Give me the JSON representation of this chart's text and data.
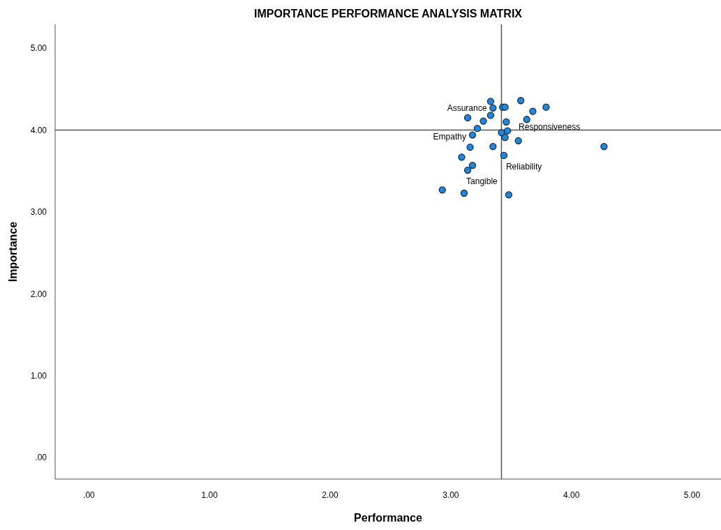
{
  "chart_data": {
    "type": "scatter",
    "title": "IMPORTANCE PERFORMANCE ANALYSIS MATRIX",
    "xlabel": "Performance",
    "ylabel": "Importance",
    "x": [
      3.33,
      3.35,
      3.43,
      3.45,
      3.58,
      3.79,
      3.68,
      3.63,
      3.14,
      3.33,
      3.27,
      3.46,
      3.22,
      3.18,
      3.42,
      3.47,
      3.45,
      3.56,
      4.27,
      3.16,
      3.35,
      3.44,
      3.09,
      3.18,
      3.14,
      2.93,
      3.11,
      3.48
    ],
    "values": [
      4.35,
      4.27,
      4.28,
      4.28,
      4.36,
      4.28,
      4.23,
      4.13,
      4.15,
      4.18,
      4.11,
      4.1,
      4.02,
      3.94,
      3.97,
      3.99,
      3.91,
      3.87,
      3.8,
      3.79,
      3.8,
      3.69,
      3.67,
      3.57,
      3.51,
      3.27,
      3.23,
      3.21
    ],
    "color": "#1e88e0",
    "marker": "circle",
    "grid": false,
    "xlim": [
      -0.28,
      5.24
    ],
    "ylim": [
      -0.26,
      5.29
    ],
    "xticks": [
      {
        "value": 0,
        "label": ".00"
      },
      {
        "value": 1,
        "label": "1.00"
      },
      {
        "value": 2,
        "label": "2.00"
      },
      {
        "value": 3,
        "label": "3.00"
      },
      {
        "value": 4,
        "label": "4.00"
      },
      {
        "value": 5,
        "label": "5.00"
      }
    ],
    "yticks": [
      {
        "value": 0,
        "label": ".00"
      },
      {
        "value": 1,
        "label": "1.00"
      },
      {
        "value": 2,
        "label": "2.00"
      },
      {
        "value": 3,
        "label": "3.00"
      },
      {
        "value": 4,
        "label": "4.00"
      },
      {
        "value": 5,
        "label": "5.00"
      }
    ],
    "ref_lines": [
      {
        "axis": "x",
        "value": 3.42,
        "color": "#555555"
      },
      {
        "axis": "y",
        "value": 4.0,
        "color": "#555555"
      }
    ],
    "annotations": [
      {
        "text": "Assurance",
        "x": 3.35,
        "y": 4.27
      },
      {
        "text": "Empathy",
        "x": 3.18,
        "y": 3.94
      },
      {
        "text": "Responsiveness",
        "x": 3.47,
        "y": 3.99
      },
      {
        "text": "Reliability",
        "x": 3.44,
        "y": 3.69
      },
      {
        "text": "Tangible",
        "x": 3.14,
        "y": 3.51
      }
    ]
  }
}
